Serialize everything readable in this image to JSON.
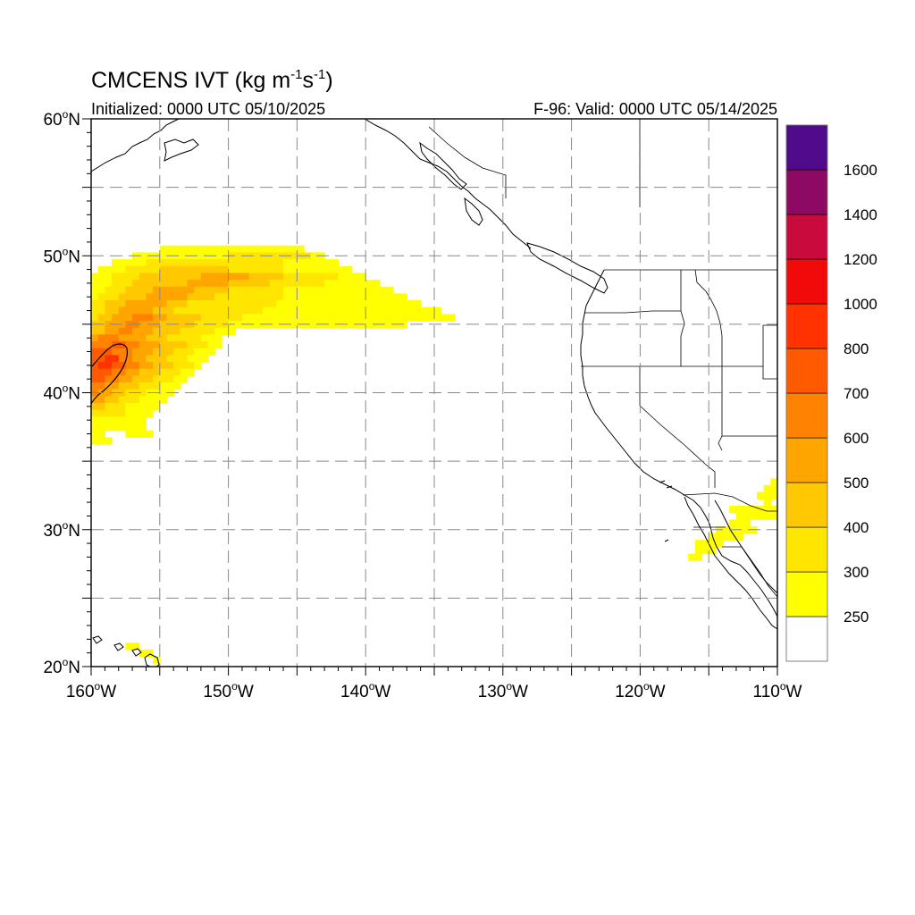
{
  "title": {
    "main": "CMCENS IVT (kg m",
    "sup1": "-1",
    "mid": "s",
    "sup2": "-1",
    "end": ")"
  },
  "init_text": "Initialized: 0000 UTC 05/10/2025",
  "valid_text": "F-96: Valid: 0000 UTC 05/14/2025",
  "lon_ticks": [
    {
      "value": -160,
      "num": "160",
      "hemi": "W"
    },
    {
      "value": -150,
      "num": "150",
      "hemi": "W"
    },
    {
      "value": -140,
      "num": "140",
      "hemi": "W"
    },
    {
      "value": -130,
      "num": "130",
      "hemi": "W"
    },
    {
      "value": -120,
      "num": "120",
      "hemi": "W"
    },
    {
      "value": -110,
      "num": "110",
      "hemi": "W"
    }
  ],
  "lat_ticks": [
    {
      "value": 20,
      "num": "20",
      "hemi": "N"
    },
    {
      "value": 30,
      "num": "30",
      "hemi": "N"
    },
    {
      "value": 40,
      "num": "40",
      "hemi": "N"
    },
    {
      "value": 50,
      "num": "50",
      "hemi": "N"
    },
    {
      "value": 60,
      "num": "60",
      "hemi": "N"
    }
  ],
  "map_extent": {
    "lon": [
      -160,
      -110
    ],
    "lat": [
      20,
      60
    ]
  },
  "grid_style": "dashed",
  "colorbar": {
    "levels": [
      {
        "label": "",
        "color": "#ffffff"
      },
      {
        "label": "250",
        "color": "#ffff00"
      },
      {
        "label": "300",
        "color": "#ffe600"
      },
      {
        "label": "400",
        "color": "#ffc800"
      },
      {
        "label": "500",
        "color": "#ffa500"
      },
      {
        "label": "600",
        "color": "#ff8200"
      },
      {
        "label": "700",
        "color": "#ff5a00"
      },
      {
        "label": "800",
        "color": "#ff3200"
      },
      {
        "label": "1000",
        "color": "#f00a0a"
      },
      {
        "label": "1200",
        "color": "#c80a3c"
      },
      {
        "label": "1400",
        "color": "#8c0a64"
      },
      {
        "label": "1600",
        "color": "#500a8c"
      }
    ]
  },
  "ivt_plume": {
    "rows": [
      {
        "lat": 50.5,
        "cells": [
          [
            -155,
            -145,
            1
          ],
          [
            -145,
            -144.5,
            1
          ]
        ]
      },
      {
        "lat": 50,
        "cells": [
          [
            -157,
            -150,
            1
          ],
          [
            -150,
            -144,
            2
          ],
          [
            -144,
            -143,
            1
          ]
        ]
      },
      {
        "lat": 49.5,
        "cells": [
          [
            -158.5,
            -156,
            1
          ],
          [
            -156,
            -151,
            2
          ],
          [
            -151,
            -146,
            2
          ],
          [
            -146,
            -142,
            1
          ]
        ]
      },
      {
        "lat": 49,
        "cells": [
          [
            -159.5,
            -157.5,
            1
          ],
          [
            -157.5,
            -155,
            2
          ],
          [
            -155,
            -150,
            3
          ],
          [
            -150,
            -146,
            2
          ],
          [
            -146,
            -141,
            1
          ]
        ]
      },
      {
        "lat": 48.5,
        "cells": [
          [
            -160,
            -158.5,
            1
          ],
          [
            -158.5,
            -156.5,
            2
          ],
          [
            -156.5,
            -152,
            3
          ],
          [
            -152,
            -148.5,
            4
          ],
          [
            -148.5,
            -146,
            3
          ],
          [
            -146,
            -142,
            2
          ],
          [
            -142,
            -140,
            1
          ]
        ]
      },
      {
        "lat": 48,
        "cells": [
          [
            -160,
            -158.5,
            1
          ],
          [
            -158.5,
            -157,
            2
          ],
          [
            -157,
            -153,
            3
          ],
          [
            -153,
            -150,
            4
          ],
          [
            -150,
            -147,
            3
          ],
          [
            -147,
            -143,
            2
          ],
          [
            -143,
            -139,
            1
          ]
        ]
      },
      {
        "lat": 47.5,
        "cells": [
          [
            -160,
            -159,
            1
          ],
          [
            -159,
            -157.5,
            2
          ],
          [
            -157.5,
            -155.5,
            3
          ],
          [
            -155.5,
            -152.5,
            4
          ],
          [
            -152.5,
            -150,
            3
          ],
          [
            -150,
            -146,
            2
          ],
          [
            -146,
            -138,
            1
          ]
        ]
      },
      {
        "lat": 47,
        "cells": [
          [
            -160,
            -159.5,
            1
          ],
          [
            -159.5,
            -158,
            2
          ],
          [
            -158,
            -156,
            3
          ],
          [
            -156,
            -153,
            4
          ],
          [
            -153,
            -151,
            3
          ],
          [
            -151,
            -146,
            2
          ],
          [
            -146,
            -137,
            1
          ]
        ]
      },
      {
        "lat": 46.5,
        "cells": [
          [
            -160,
            -159,
            2
          ],
          [
            -159,
            -157.5,
            3
          ],
          [
            -157.5,
            -154.5,
            4
          ],
          [
            -154.5,
            -153,
            3
          ],
          [
            -153,
            -150,
            2
          ],
          [
            -150,
            -146.5,
            2
          ],
          [
            -146.5,
            -136,
            1
          ]
        ]
      },
      {
        "lat": 46,
        "cells": [
          [
            -160,
            -159,
            2
          ],
          [
            -159,
            -158,
            3
          ],
          [
            -158,
            -155.5,
            4
          ],
          [
            -155.5,
            -154,
            3
          ],
          [
            -154,
            -150.5,
            2
          ],
          [
            -150.5,
            -147.5,
            2
          ],
          [
            -147.5,
            -134.5,
            1
          ]
        ]
      },
      {
        "lat": 45.5,
        "cells": [
          [
            -160,
            -159.5,
            2
          ],
          [
            -159.5,
            -158.5,
            3
          ],
          [
            -158.5,
            -157,
            4
          ],
          [
            -157,
            -155.5,
            5
          ],
          [
            -155.5,
            -154.5,
            4
          ],
          [
            -154.5,
            -152,
            3
          ],
          [
            -152,
            -149,
            2
          ],
          [
            -149,
            -133.5,
            1
          ]
        ]
      },
      {
        "lat": 45,
        "cells": [
          [
            -160,
            -159,
            3
          ],
          [
            -159,
            -157.5,
            4
          ],
          [
            -157.5,
            -156.5,
            5
          ],
          [
            -156.5,
            -155,
            4
          ],
          [
            -155,
            -152.5,
            3
          ],
          [
            -152.5,
            -150,
            2
          ],
          [
            -150,
            -137,
            1
          ]
        ]
      },
      {
        "lat": 44.5,
        "cells": [
          [
            -160,
            -159,
            3
          ],
          [
            -159,
            -158,
            4
          ],
          [
            -158,
            -157,
            5
          ],
          [
            -157,
            -155.5,
            4
          ],
          [
            -155.5,
            -153.5,
            3
          ],
          [
            -153.5,
            -151,
            2
          ],
          [
            -151,
            -149.5,
            1
          ]
        ]
      },
      {
        "lat": 44,
        "cells": [
          [
            -160,
            -159.5,
            4
          ],
          [
            -159.5,
            -158,
            5
          ],
          [
            -158,
            -156,
            4
          ],
          [
            -156,
            -154.5,
            3
          ],
          [
            -154.5,
            -152,
            2
          ],
          [
            -152,
            -150.5,
            1
          ]
        ]
      },
      {
        "lat": 43.5,
        "cells": [
          [
            -160,
            -158.5,
            5
          ],
          [
            -158.5,
            -157.5,
            6
          ],
          [
            -157.5,
            -156.5,
            5
          ],
          [
            -156.5,
            -155,
            4
          ],
          [
            -155,
            -153,
            3
          ],
          [
            -153,
            -151.5,
            2
          ],
          [
            -151.5,
            -150.5,
            1
          ]
        ]
      },
      {
        "lat": 43,
        "cells": [
          [
            -160,
            -158.5,
            6
          ],
          [
            -158.5,
            -157,
            5
          ],
          [
            -157,
            -155.5,
            4
          ],
          [
            -155.5,
            -154,
            3
          ],
          [
            -154,
            -152.5,
            2
          ],
          [
            -152.5,
            -151,
            1
          ]
        ]
      },
      {
        "lat": 42.5,
        "cells": [
          [
            -160,
            -159,
            6
          ],
          [
            -159,
            -158,
            7
          ],
          [
            -158,
            -157,
            5
          ],
          [
            -157,
            -156,
            4
          ],
          [
            -156,
            -154.5,
            3
          ],
          [
            -154.5,
            -153,
            2
          ],
          [
            -153,
            -151.5,
            1
          ]
        ]
      },
      {
        "lat": 42,
        "cells": [
          [
            -160,
            -159.5,
            6
          ],
          [
            -159.5,
            -158.5,
            7
          ],
          [
            -158.5,
            -157.5,
            6
          ],
          [
            -157.5,
            -156.5,
            5
          ],
          [
            -156.5,
            -155.5,
            4
          ],
          [
            -155.5,
            -154,
            3
          ],
          [
            -154,
            -152.5,
            2
          ],
          [
            -152.5,
            -152,
            1
          ]
        ]
      },
      {
        "lat": 41.5,
        "cells": [
          [
            -160,
            -158.5,
            6
          ],
          [
            -158.5,
            -157.5,
            5
          ],
          [
            -157.5,
            -156.5,
            4
          ],
          [
            -156.5,
            -155,
            3
          ],
          [
            -155,
            -153.5,
            2
          ],
          [
            -153.5,
            -152.5,
            1
          ]
        ]
      },
      {
        "lat": 41,
        "cells": [
          [
            -160,
            -159,
            6
          ],
          [
            -159,
            -158,
            5
          ],
          [
            -158,
            -157,
            4
          ],
          [
            -157,
            -155.5,
            3
          ],
          [
            -155.5,
            -154,
            2
          ],
          [
            -154,
            -153,
            1
          ]
        ]
      },
      {
        "lat": 40.5,
        "cells": [
          [
            -160,
            -159,
            5
          ],
          [
            -159,
            -158,
            4
          ],
          [
            -158,
            -156.5,
            3
          ],
          [
            -156.5,
            -155,
            2
          ],
          [
            -155,
            -153.5,
            1
          ]
        ]
      },
      {
        "lat": 40,
        "cells": [
          [
            -160,
            -159.5,
            5
          ],
          [
            -159.5,
            -158.5,
            4
          ],
          [
            -158.5,
            -157.5,
            3
          ],
          [
            -157.5,
            -156,
            2
          ],
          [
            -156,
            -154,
            1
          ]
        ]
      },
      {
        "lat": 39.5,
        "cells": [
          [
            -160,
            -159,
            4
          ],
          [
            -159,
            -158,
            3
          ],
          [
            -158,
            -156.5,
            2
          ],
          [
            -156.5,
            -154.5,
            1
          ]
        ]
      },
      {
        "lat": 39,
        "cells": [
          [
            -160,
            -159,
            3
          ],
          [
            -159,
            -157.5,
            2
          ],
          [
            -157.5,
            -155,
            1
          ]
        ]
      },
      {
        "lat": 38.5,
        "cells": [
          [
            -160,
            -159,
            2
          ],
          [
            -159,
            -157.5,
            2
          ],
          [
            -157.5,
            -155.5,
            1
          ]
        ]
      },
      {
        "lat": 38,
        "cells": [
          [
            -160,
            -157.5,
            1
          ],
          [
            -157.5,
            -156,
            1
          ]
        ]
      },
      {
        "lat": 37.5,
        "cells": [
          [
            -160,
            -158,
            1
          ],
          [
            -158,
            -157.5,
            1
          ],
          [
            -157.5,
            -156,
            1
          ]
        ]
      },
      {
        "lat": 37,
        "cells": [
          [
            -160,
            -159,
            1
          ],
          [
            -157.5,
            -155.5,
            1
          ]
        ]
      },
      {
        "lat": 36.5,
        "cells": [
          [
            -160,
            -158.5,
            1
          ]
        ]
      }
    ],
    "southern_cells": [
      {
        "lat": 33.5,
        "cells": [
          [
            -110.5,
            -110,
            1
          ]
        ]
      },
      {
        "lat": 33,
        "cells": [
          [
            -111,
            -110,
            1
          ]
        ]
      },
      {
        "lat": 32.5,
        "cells": [
          [
            -111.5,
            -110,
            1
          ]
        ]
      },
      {
        "lat": 32,
        "cells": [
          [
            -111,
            -110.5,
            1
          ]
        ]
      },
      {
        "lat": 31.5,
        "cells": [
          [
            -113.5,
            -110,
            1
          ]
        ]
      },
      {
        "lat": 31,
        "cells": [
          [
            -113,
            -110,
            1
          ]
        ]
      },
      {
        "lat": 30.5,
        "cells": [
          [
            -113.5,
            -112,
            1
          ]
        ]
      },
      {
        "lat": 30,
        "cells": [
          [
            -114.5,
            -111.5,
            1
          ]
        ]
      },
      {
        "lat": 29.5,
        "cells": [
          [
            -115,
            -112.5,
            1
          ]
        ]
      },
      {
        "lat": 29,
        "cells": [
          [
            -116,
            -114,
            1
          ]
        ]
      },
      {
        "lat": 28.5,
        "cells": [
          [
            -116,
            -114.5,
            1
          ]
        ]
      },
      {
        "lat": 28,
        "cells": [
          [
            -116.5,
            -115.5,
            1
          ]
        ]
      },
      {
        "lat": 21.5,
        "cells": [
          [
            -157.5,
            -156.5,
            1
          ]
        ]
      },
      {
        "lat": 21,
        "cells": [
          [
            -156.5,
            -155.5,
            1
          ]
        ]
      },
      {
        "lat": 20.5,
        "cells": [
          [
            -155.5,
            -155,
            1
          ]
        ]
      }
    ]
  }
}
